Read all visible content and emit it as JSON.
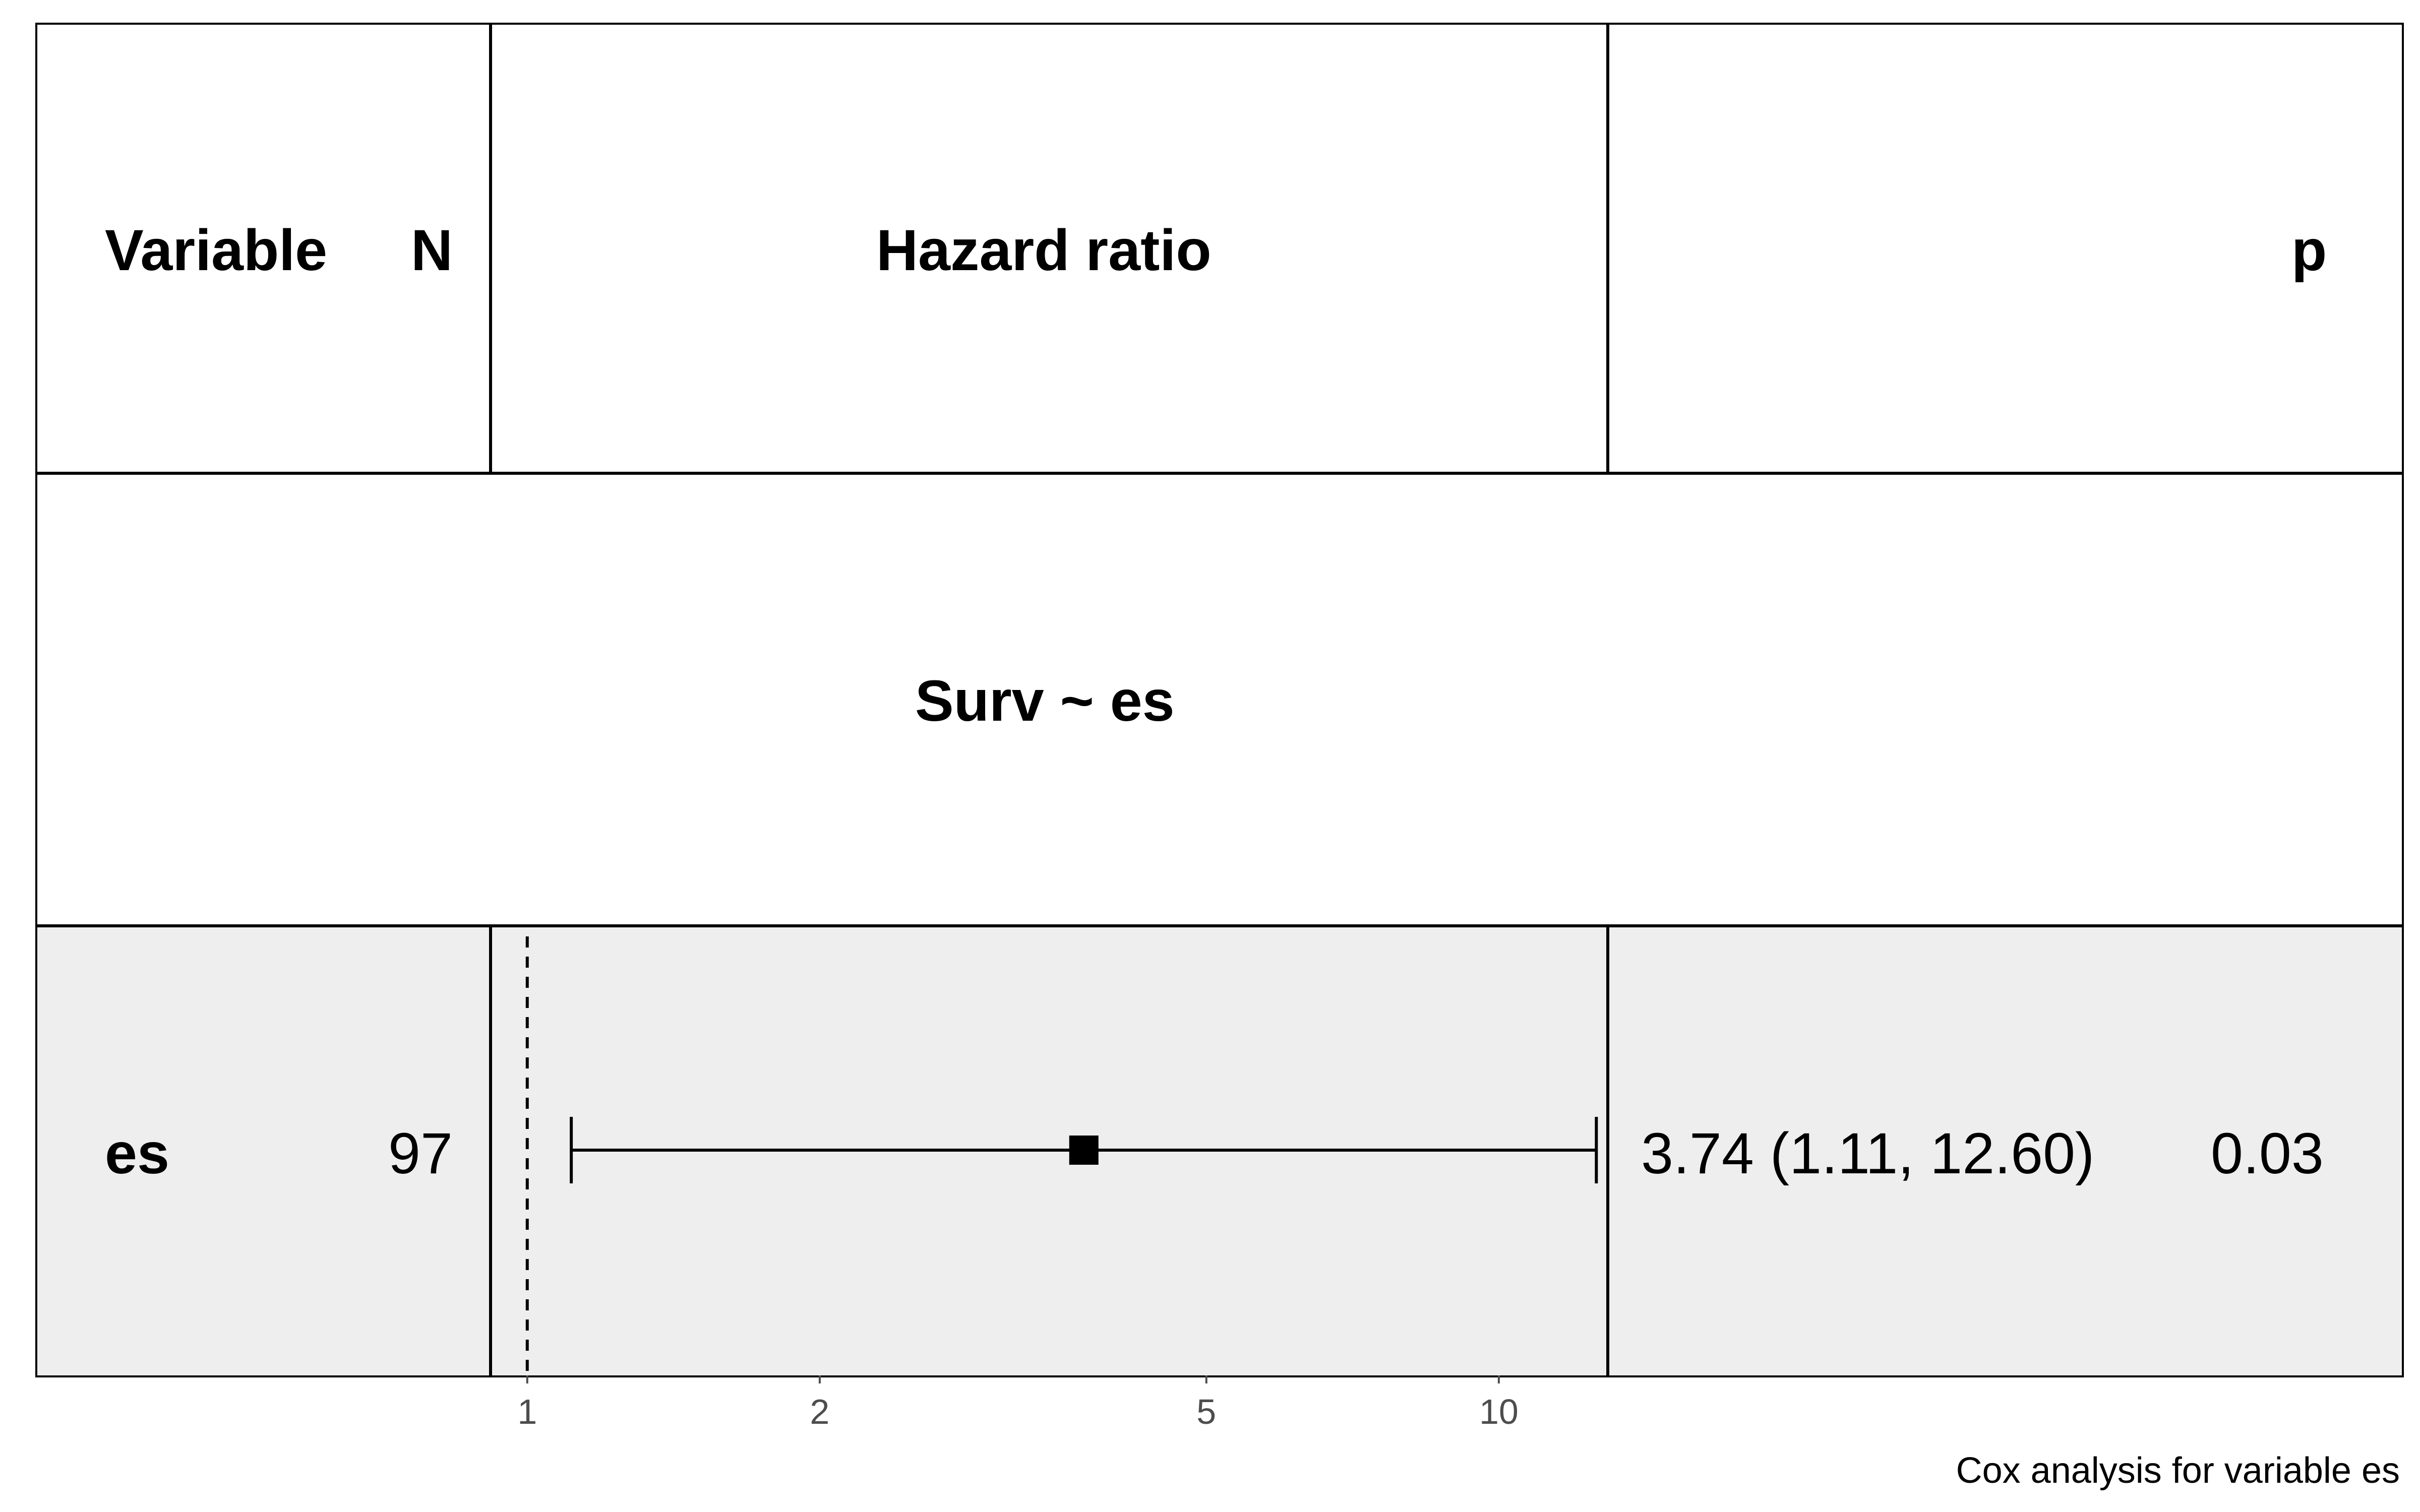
{
  "header": {
    "variable": "Variable",
    "n": "N",
    "hazard_ratio": "Hazard ratio",
    "p": "p"
  },
  "model": {
    "formula": "Surv ~ es"
  },
  "row": {
    "variable": "es",
    "n": "97",
    "estimate_text": "3.74 (1.11, 12.60)",
    "p": "0.03"
  },
  "caption": "Cox analysis for variable es",
  "colors": {
    "row_shade": "#eeeeee",
    "tick_text": "#4d4d4d",
    "line": "#000000"
  },
  "chart_data": {
    "type": "forest",
    "scale": "log",
    "reference_line": 1,
    "xlim": [
      0.92,
      12.9
    ],
    "ticks": [
      1,
      2,
      5,
      10
    ],
    "tick_labels": [
      "1",
      "2",
      "5",
      "10"
    ],
    "points": [
      {
        "label": "es",
        "estimate": 3.74,
        "lower": 1.11,
        "upper": 12.6
      }
    ]
  }
}
